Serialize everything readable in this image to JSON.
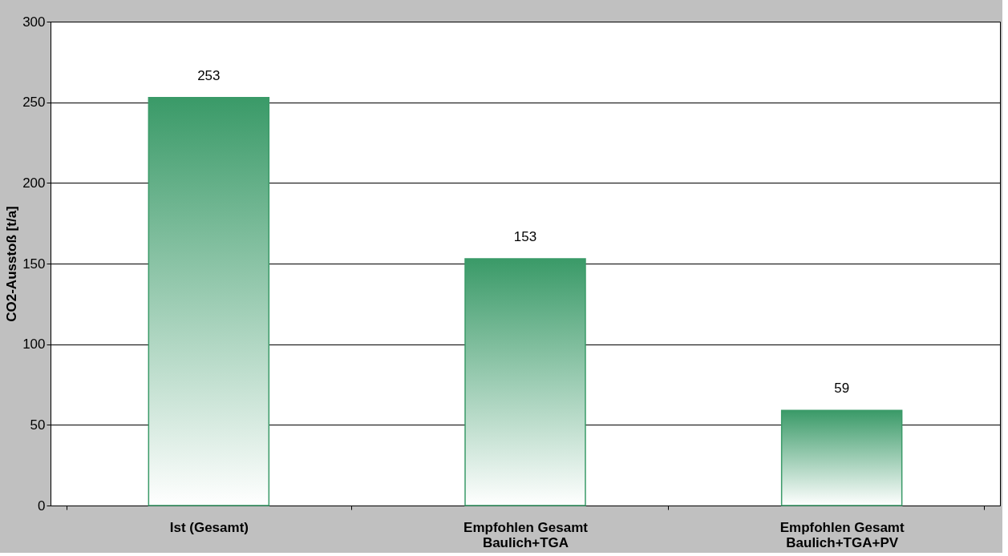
{
  "chart_data": {
    "type": "bar",
    "ylabel": "CO2-Ausstoß [t/a]",
    "categories": [
      "Ist (Gesamt)",
      "Empfohlen Gesamt\nBaulich+TGA",
      "Empfohlen Gesamt\nBaulich+TGA+PV"
    ],
    "values": [
      253,
      153,
      59
    ],
    "color": "#3a9a68",
    "ylim": [
      0,
      300
    ],
    "yticks": [
      0,
      50,
      100,
      150,
      200,
      250,
      300
    ],
    "grid": "y",
    "data_labels": true
  }
}
